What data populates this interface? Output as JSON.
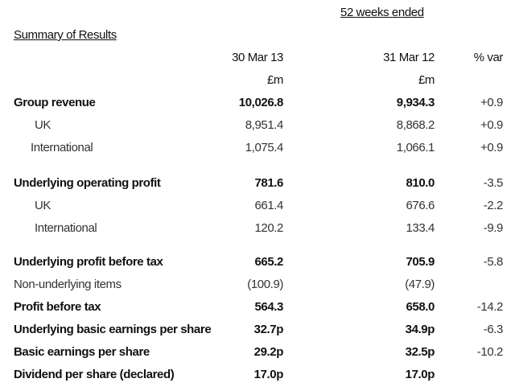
{
  "period_heading": "52 weeks ended",
  "title": "Summary of Results",
  "columns": [
    "30 Mar 13",
    "31 Mar 12",
    "% var"
  ],
  "units": [
    "£m",
    "£m"
  ],
  "rows": [
    {
      "label": "Group revenue",
      "current": "10,026.8",
      "prior": "9,934.3",
      "var": "+0.9"
    },
    {
      "label": "UK",
      "current": "8,951.4",
      "prior": "8,868.2",
      "var": "+0.9"
    },
    {
      "label": "International",
      "current": "1,075.4",
      "prior": "1,066.1",
      "var": "+0.9"
    },
    {
      "label": "Underlying operating profit",
      "current": "781.6",
      "prior": "810.0",
      "var": "-3.5"
    },
    {
      "label": "UK",
      "current": "661.4",
      "prior": "676.6",
      "var": "-2.2"
    },
    {
      "label": "International",
      "current": "120.2",
      "prior": "133.4",
      "var": "-9.9"
    },
    {
      "label": "Underlying profit before tax",
      "current": "665.2",
      "prior": "705.9",
      "var": "-5.8"
    },
    {
      "label": "Non-underlying items",
      "current": "(100.9)",
      "prior": "(47.9)",
      "var": ""
    },
    {
      "label": "Profit before tax",
      "current": "564.3",
      "prior": "658.0",
      "var": "-14.2"
    },
    {
      "label": "Underlying basic earnings per share",
      "current": "32.7p",
      "prior": "34.9p",
      "var": "-6.3"
    },
    {
      "label": "Basic earnings per share",
      "current": "29.2p",
      "prior": "32.5p",
      "var": "-10.2"
    },
    {
      "label": "Dividend per share (declared)",
      "current": "17.0p",
      "prior": "17.0p",
      "var": ""
    }
  ]
}
